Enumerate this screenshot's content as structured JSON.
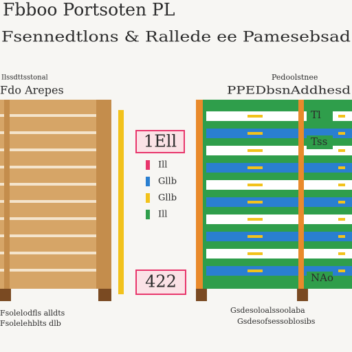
{
  "header": {
    "title": "Fbboo Portsoten PL",
    "subtitle": "Fsennedtlons & Rallede ee Pamesebsad"
  },
  "left": {
    "label_top": "Ilssdttsstonal",
    "label": "Fdo Arepes",
    "caption_1": "Fsolelodfls alldts",
    "caption_2": "Fsolelehblts dlb"
  },
  "center": {
    "top_box": "1Ell",
    "legend": [
      "Ill",
      "Gllb",
      "Gllb",
      "Ill"
    ],
    "bottom_box": "422"
  },
  "right": {
    "label_top": "Pedoolstnee",
    "label": "PPEDbsnAddhesd",
    "row_labels": [
      "Tl",
      "Tss",
      "NAo"
    ],
    "caption_1": "Gsdesoloalssoolaba",
    "caption_2": "Gsdesofsessoblosibs"
  }
}
